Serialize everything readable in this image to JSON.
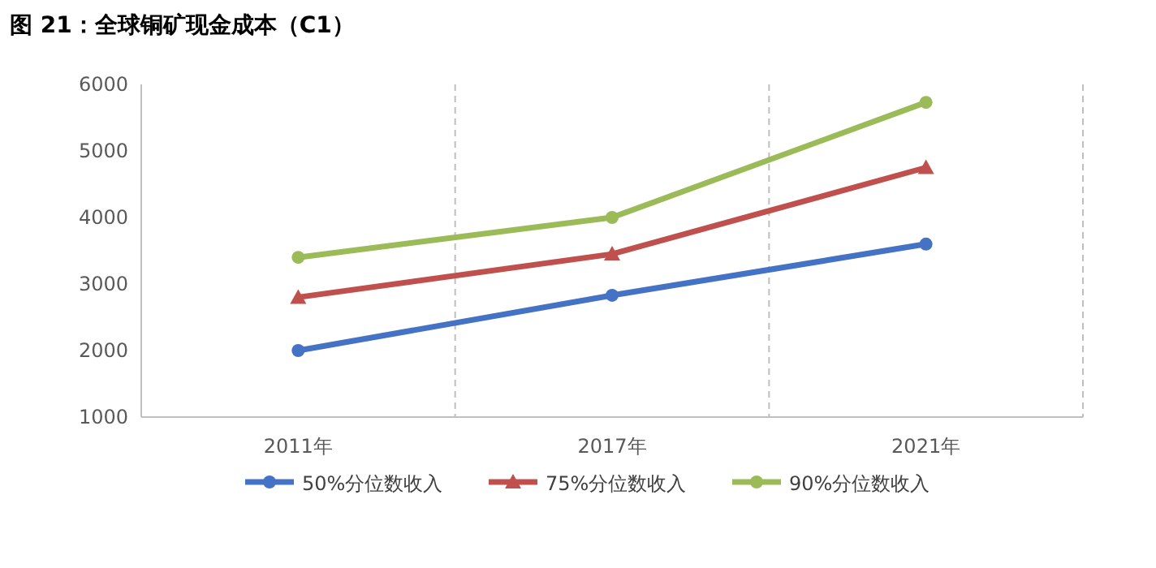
{
  "chart_data": {
    "type": "line",
    "title": "图 21：全球铜矿现金成本（C1）",
    "categories": [
      "2011年",
      "2017年",
      "2021年"
    ],
    "series": [
      {
        "name": "50%分位数收入",
        "color": "#4472c4",
        "marker": "circle",
        "values": [
          2000,
          2830,
          3600
        ]
      },
      {
        "name": "75%分位数收入",
        "color": "#c0504d",
        "marker": "triangle",
        "values": [
          2800,
          3450,
          4750
        ]
      },
      {
        "name": "90%分位数收入",
        "color": "#9bbb59",
        "marker": "circle",
        "values": [
          3400,
          4000,
          5730
        ]
      }
    ],
    "ylim": [
      1000,
      6000
    ],
    "yticks": [
      1000,
      2000,
      3000,
      4000,
      5000,
      6000
    ],
    "grid": "x",
    "legend": "bottom"
  }
}
